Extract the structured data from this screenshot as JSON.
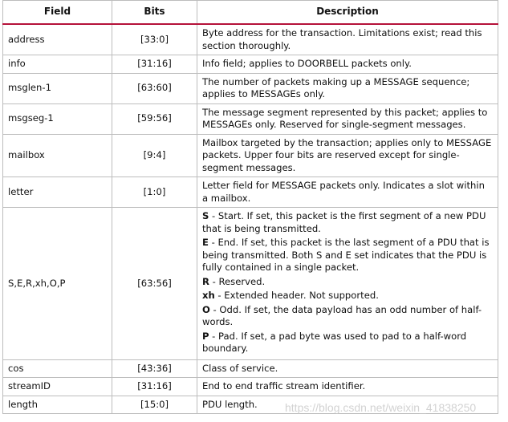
{
  "headers": [
    "Field",
    "Bits",
    "Description"
  ],
  "rows": [
    {
      "field": "address",
      "bits": "[33:0]",
      "desc": "Byte address for the transaction. Limitations exist; read this section thoroughly."
    },
    {
      "field": "info",
      "bits": "[31:16]",
      "desc": "Info field; applies to DOORBELL packets only."
    },
    {
      "field": "msglen-1",
      "bits": "[63:60]",
      "desc": "The number of packets making up a MESSAGE sequence; applies to MESSAGEs only."
    },
    {
      "field": "msgseg-1",
      "bits": "[59:56]",
      "desc": "The message segment represented by this packet; applies to MESSAGEs only. Reserved for single-segment messages."
    },
    {
      "field": "mailbox",
      "bits": "[9:4]",
      "desc": "Mailbox targeted by the transaction; applies only to MESSAGE packets. Upper four bits are reserved except for single-segment messages."
    },
    {
      "field": "letter",
      "bits": "[1:0]",
      "desc": "Letter field for MESSAGE packets only. Indicates a slot within a mailbox."
    }
  ],
  "flags": {
    "field": "S,E,R,xh,O,P",
    "bits": "[63:56]",
    "items": [
      {
        "key": "S",
        "text": " - Start. If set, this packet is the first segment of a new PDU that is being transmitted."
      },
      {
        "key": "E",
        "text": " - End. If set, this packet is the last segment of a PDU that is being transmitted. Both S and E set indicates that the PDU is fully contained in a single packet."
      },
      {
        "key": "R",
        "text": " - Reserved."
      },
      {
        "key": "xh",
        "text": " - Extended header. Not supported."
      },
      {
        "key": "O",
        "text": " - Odd. If set, the data payload has an odd number of half-words."
      },
      {
        "key": "P",
        "text": " - Pad. If set, a pad byte was used to pad to a half-word boundary."
      }
    ]
  },
  "rows2": [
    {
      "field": "cos",
      "bits": "[43:36]",
      "desc": "Class of service."
    },
    {
      "field": "streamID",
      "bits": "[31:16]",
      "desc": "End to end traffic stream identifier."
    },
    {
      "field": "length",
      "bits": "[15:0]",
      "desc": "PDU length."
    }
  ],
  "watermark": "https://blog.csdn.net/weixin_41838250",
  "colors": {
    "header_rule": "#b5123a"
  }
}
